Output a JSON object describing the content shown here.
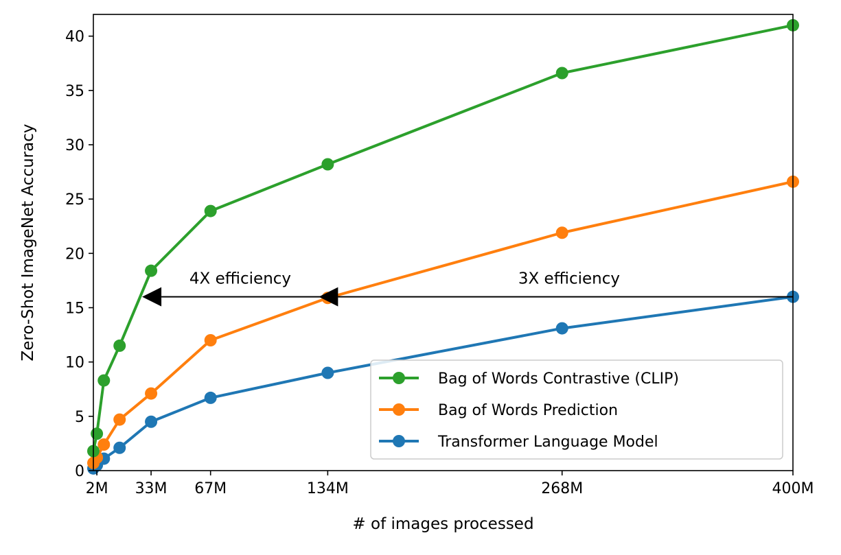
{
  "chart_data": {
    "type": "line",
    "title": "",
    "xlabel": "# of images processed",
    "ylabel": "Zero-Shot ImageNet Accuracy",
    "xlim": [
      0,
      400
    ],
    "ylim": [
      0,
      42
    ],
    "x_unit": "M",
    "x_ticks": [
      2,
      33,
      67,
      134,
      268,
      400
    ],
    "x_tick_labels": [
      "2M",
      "33M",
      "67M",
      "134M",
      "268M",
      "400M"
    ],
    "y_ticks": [
      0,
      5,
      10,
      15,
      20,
      25,
      30,
      35,
      40
    ],
    "y_tick_labels": [
      "0",
      "5",
      "10",
      "15",
      "20",
      "25",
      "30",
      "35",
      "40"
    ],
    "grid": false,
    "legend_position": "lower-right",
    "series": [
      {
        "name": "Bag of Words Contrastive (CLIP)",
        "color": "#2ca02c",
        "x": [
          0,
          2,
          6,
          15,
          33,
          67,
          134,
          268,
          400
        ],
        "y": [
          1.8,
          3.4,
          8.3,
          11.5,
          18.4,
          23.9,
          28.2,
          36.6,
          41.0
        ]
      },
      {
        "name": "Bag of Words Prediction",
        "color": "#ff7f0e",
        "x": [
          0,
          2,
          6,
          15,
          33,
          67,
          134,
          268,
          400
        ],
        "y": [
          0.7,
          1.2,
          2.4,
          4.7,
          7.1,
          12.0,
          15.9,
          21.9,
          26.6
        ]
      },
      {
        "name": "Transformer Language Model",
        "color": "#1f77b4",
        "x": [
          0,
          2,
          6,
          15,
          33,
          67,
          134,
          268,
          400
        ],
        "y": [
          0.2,
          0.5,
          1.1,
          2.1,
          4.5,
          6.7,
          9.0,
          13.1,
          16.0
        ]
      }
    ],
    "annotations": [
      {
        "text": "4X efficiency",
        "from_x": 134,
        "to_x": 33,
        "y": 16.0,
        "text_x": 84,
        "text_y": 17.2
      },
      {
        "text": "3X efficiency",
        "from_x": 400,
        "to_x": 134,
        "y": 16.0,
        "text_x": 272,
        "text_y": 17.2
      }
    ]
  }
}
